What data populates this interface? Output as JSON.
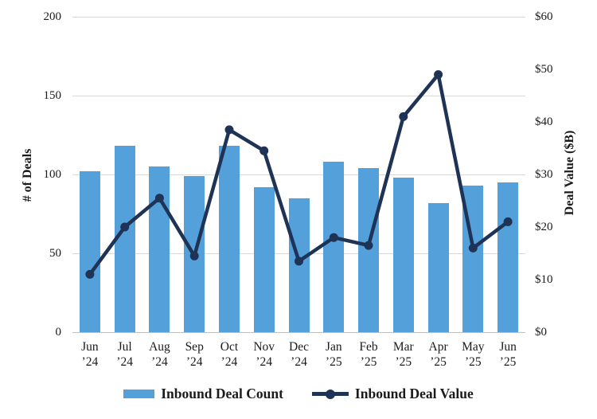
{
  "chart_data": {
    "type": "combo_bar_line",
    "categories": [
      "Jun ’24",
      "Jul ’24",
      "Aug ’24",
      "Sep ’24",
      "Oct ’24",
      "Nov ’24",
      "Dec ’24",
      "Jan ’25",
      "Feb ’25",
      "Mar ’25",
      "Apr ’25",
      "May ’25",
      "Jun ’25"
    ],
    "series": [
      {
        "name": "Inbound Deal Count",
        "type": "bar",
        "axis": "left",
        "color": "#54A0DB",
        "values": [
          102,
          118,
          105,
          99,
          118,
          92,
          85,
          108,
          104,
          98,
          82,
          93,
          95
        ]
      },
      {
        "name": "Inbound Deal Value",
        "type": "line",
        "axis": "right",
        "color": "#1E3355",
        "values": [
          11,
          20,
          25.5,
          14.5,
          38.5,
          34.5,
          13.5,
          18,
          16.5,
          41,
          49,
          16,
          21
        ]
      }
    ],
    "left_axis": {
      "title": "# of Deals",
      "min": 0,
      "max": 200,
      "tick_labels": [
        "0",
        "50",
        "100",
        "150",
        "200"
      ]
    },
    "right_axis": {
      "title": "Deal Value ($B)",
      "min": 0,
      "max": 60,
      "tick_labels": [
        "$0",
        "$10",
        "$20",
        "$30",
        "$40",
        "$50",
        "$60"
      ]
    },
    "grid": "horizontal",
    "legend_position": "bottom",
    "colors": {
      "background": "#FFFFFF",
      "gridline": "#D9D9D9",
      "axis_line": "#C0C0C0",
      "text": "#1A1A1A"
    }
  }
}
